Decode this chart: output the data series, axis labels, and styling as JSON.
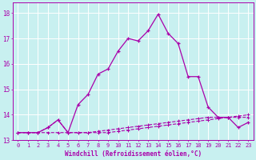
{
  "title": "",
  "xlabel": "Windchill (Refroidissement éolien,°C)",
  "background_color": "#c8f0f0",
  "grid_color": "#ffffff",
  "line_color": "#aa00aa",
  "xlim": [
    -0.5,
    23.5
  ],
  "ylim": [
    13.0,
    18.4
  ],
  "xticks": [
    0,
    1,
    2,
    3,
    4,
    5,
    6,
    7,
    8,
    9,
    10,
    11,
    12,
    13,
    14,
    15,
    16,
    17,
    18,
    19,
    20,
    21,
    22,
    23
  ],
  "yticks": [
    13,
    14,
    15,
    16,
    17,
    18
  ],
  "series1_x": [
    0,
    1,
    2,
    3,
    4,
    5,
    6,
    7,
    8,
    9,
    10,
    11,
    12,
    13,
    14,
    15,
    16,
    17,
    18,
    19,
    20,
    21,
    22,
    23
  ],
  "series1_y": [
    13.3,
    13.3,
    13.3,
    13.3,
    13.3,
    13.3,
    13.3,
    13.3,
    13.3,
    13.3,
    13.35,
    13.4,
    13.45,
    13.5,
    13.55,
    13.6,
    13.65,
    13.7,
    13.75,
    13.8,
    13.85,
    13.9,
    13.95,
    14.0
  ],
  "series2_x": [
    0,
    1,
    2,
    3,
    4,
    5,
    6,
    7,
    8,
    9,
    10,
    11,
    12,
    13,
    14,
    15,
    16,
    17,
    18,
    19,
    20,
    21,
    22,
    23
  ],
  "series2_y": [
    13.3,
    13.3,
    13.3,
    13.5,
    13.8,
    13.3,
    13.3,
    13.3,
    13.35,
    13.4,
    13.45,
    13.5,
    13.55,
    13.6,
    13.65,
    13.7,
    13.75,
    13.8,
    13.85,
    13.9,
    13.9,
    13.9,
    13.9,
    13.9
  ],
  "series3_x": [
    0,
    1,
    2,
    3,
    4,
    5,
    6,
    7,
    8,
    9,
    10,
    11,
    12,
    13,
    14,
    15,
    16,
    17,
    18,
    19,
    20,
    21,
    22,
    23
  ],
  "series3_y": [
    13.3,
    13.3,
    13.3,
    13.5,
    13.8,
    13.3,
    14.4,
    14.8,
    15.6,
    15.8,
    16.5,
    17.0,
    16.9,
    17.3,
    17.95,
    17.2,
    16.8,
    15.5,
    15.5,
    14.3,
    13.9,
    13.9,
    13.5,
    13.7
  ]
}
